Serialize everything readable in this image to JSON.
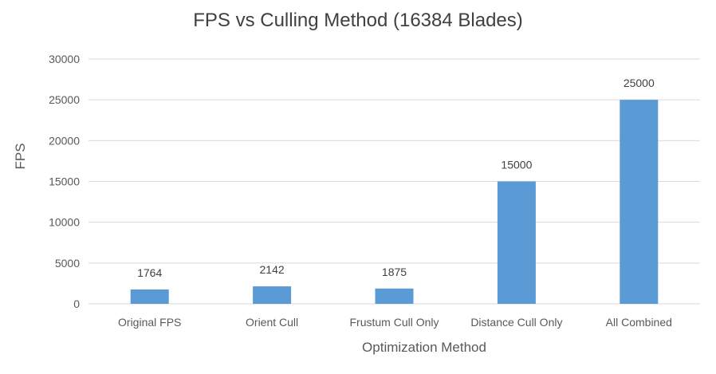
{
  "chart_data": {
    "type": "bar",
    "title": "FPS vs Culling Method (16384 Blades)",
    "xlabel": "Optimization Method",
    "ylabel": "FPS",
    "categories": [
      "Original FPS",
      "Orient Cull",
      "Frustum Cull Only",
      "Distance Cull Only",
      "All Combined"
    ],
    "values": [
      1764,
      2142,
      1875,
      15000,
      25000
    ],
    "ylim": [
      0,
      30000
    ],
    "yticks": [
      0,
      5000,
      10000,
      15000,
      20000,
      25000,
      30000
    ],
    "grid": true,
    "legend": "none",
    "bar_color": "#5b9bd5",
    "grid_color": "#d9d9d9"
  }
}
